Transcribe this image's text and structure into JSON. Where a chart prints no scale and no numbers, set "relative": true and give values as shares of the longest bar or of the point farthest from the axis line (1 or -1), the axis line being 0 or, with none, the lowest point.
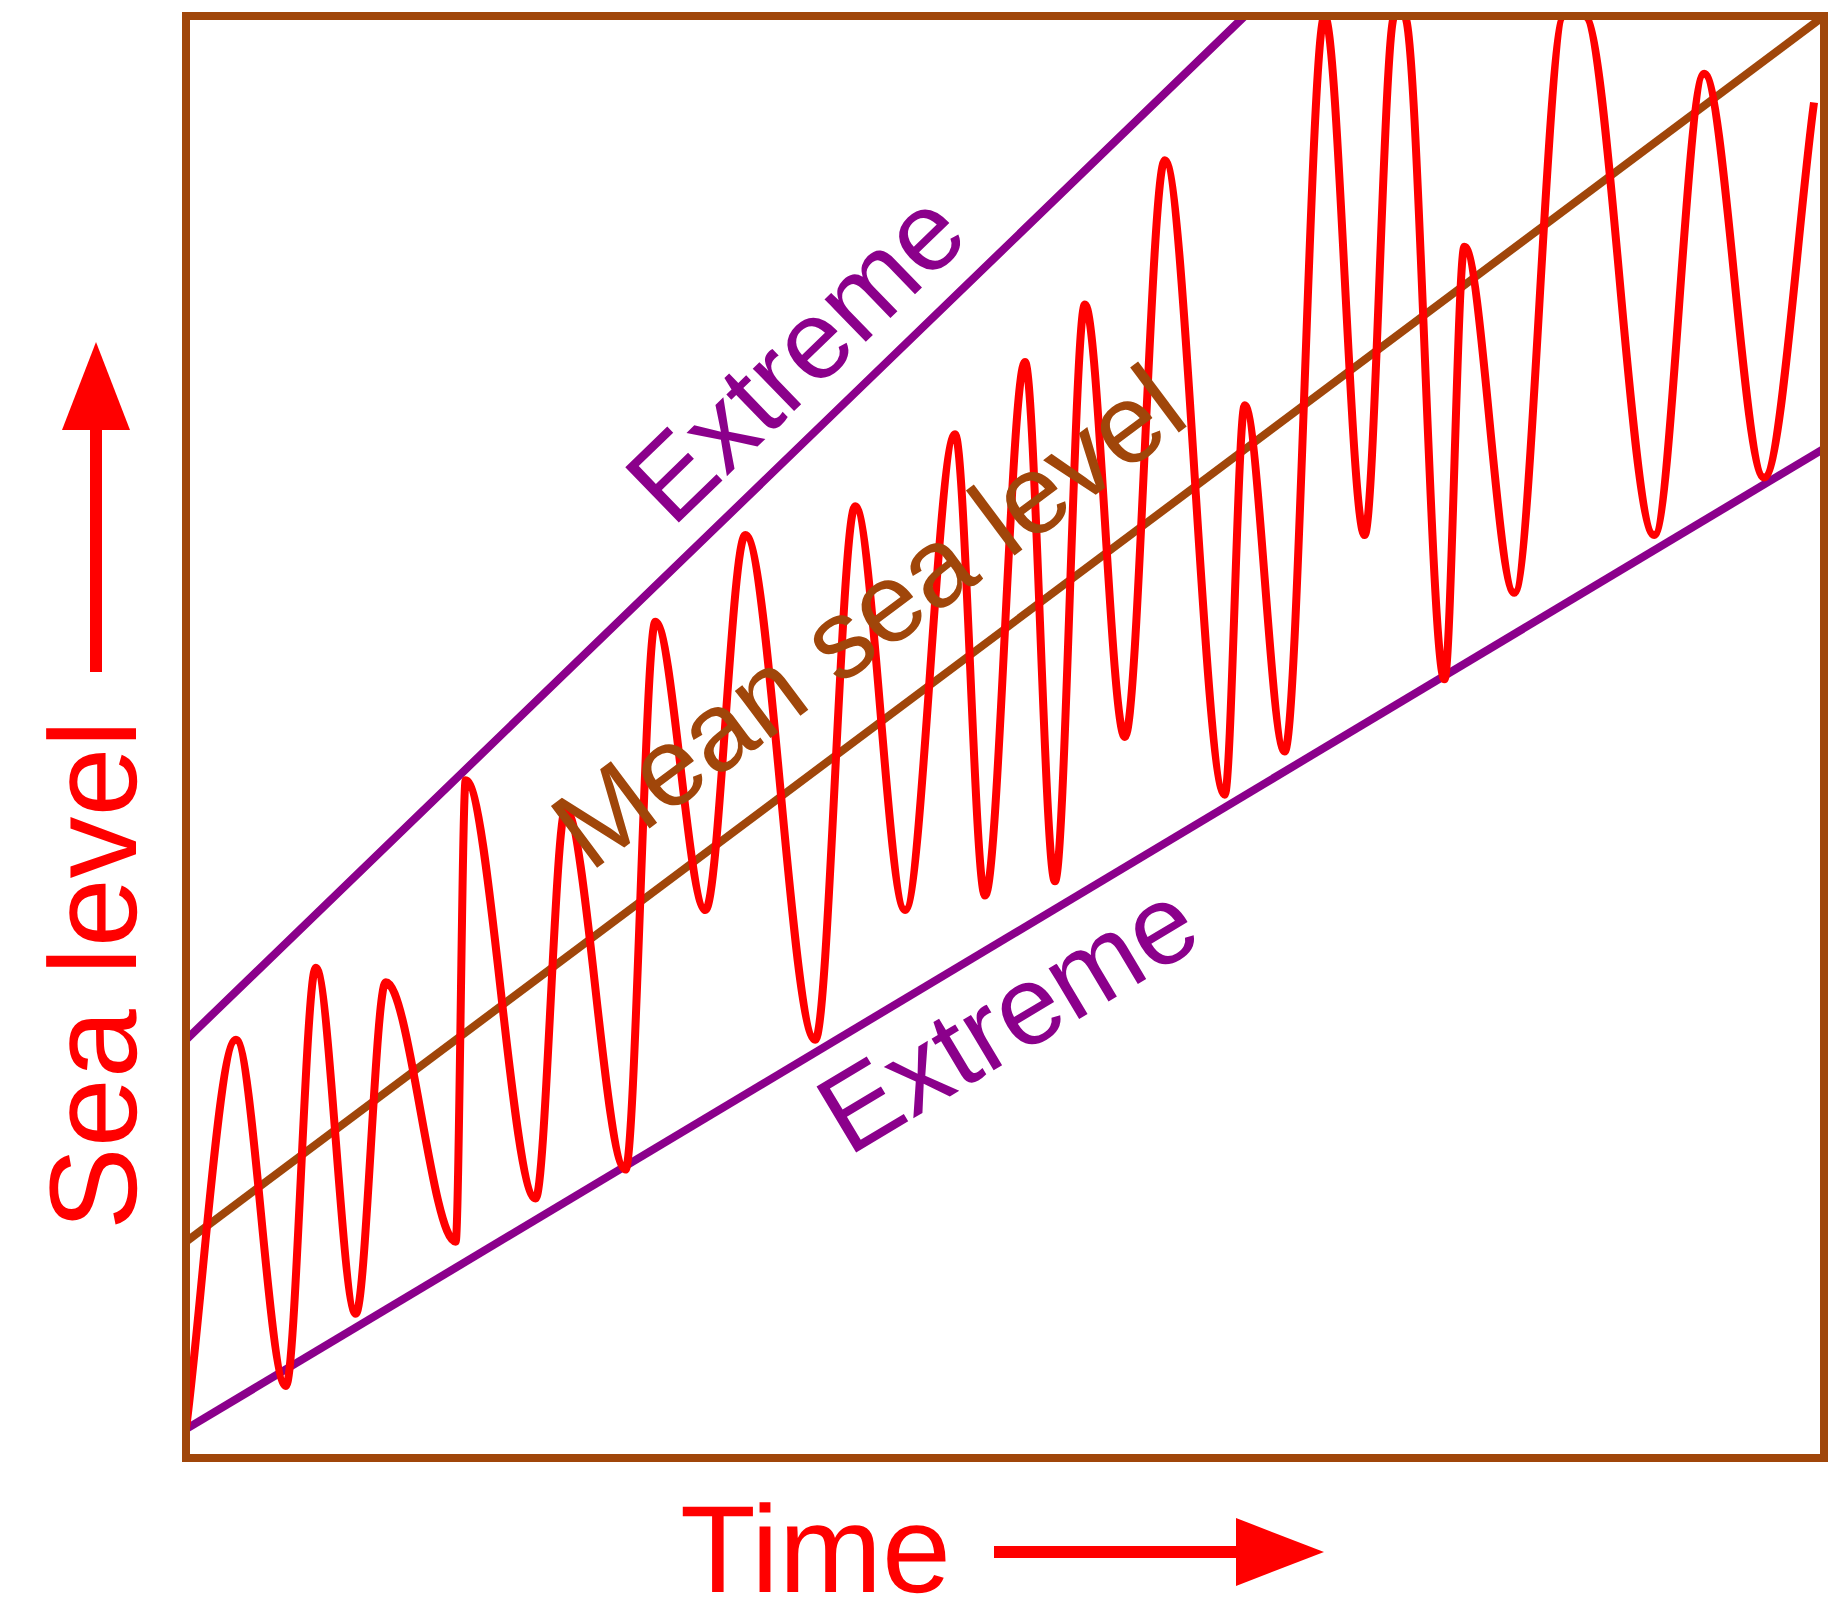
{
  "chart_data": {
    "type": "line",
    "relative": true,
    "xlabel": "Time",
    "ylabel": "Sea level",
    "categories": [
      null,
      null,
      null,
      null,
      null,
      null,
      null,
      null,
      null,
      null,
      null,
      null,
      null,
      null,
      null,
      null,
      null,
      null,
      null,
      null,
      null,
      null,
      null,
      null,
      null,
      null,
      null,
      null,
      null,
      null,
      null,
      null,
      null,
      null,
      null,
      null,
      null,
      null,
      null,
      null,
      null,
      null,
      null,
      null,
      null,
      null,
      null,
      null,
      null,
      null,
      null,
      null,
      null,
      null,
      null,
      null,
      null,
      null,
      null,
      null,
      null,
      null,
      null,
      null,
      null,
      null,
      null,
      null,
      null,
      null,
      null,
      null,
      null,
      null,
      null,
      null,
      null,
      null,
      null,
      null,
      null,
      null,
      null,
      null,
      null,
      null,
      null,
      null,
      null,
      null,
      null,
      null,
      null,
      null,
      null,
      null,
      null,
      null,
      null,
      null,
      null,
      null,
      null,
      null,
      null,
      null,
      null,
      null,
      null,
      null,
      null,
      null,
      null,
      null,
      null,
      null,
      null,
      null,
      null,
      null,
      null,
      null,
      null,
      null,
      null,
      null,
      null,
      null,
      null,
      null,
      null,
      null,
      null,
      null,
      null,
      null,
      null,
      null,
      null,
      null,
      null,
      null,
      null,
      null,
      null,
      null,
      null,
      null,
      null,
      null,
      null,
      null,
      null,
      null,
      null,
      null,
      null,
      null,
      null,
      null,
      null,
      null,
      null,
      null,
      null
    ],
    "series": [
      {
        "color": "#ff0000",
        "values": [
          0.02,
          null,
          null,
          null,
          null,
          0.29,
          null,
          null,
          null,
          null,
          0.05,
          null,
          null,
          0.34,
          null,
          null,
          null,
          0.1,
          null,
          null,
          0.33,
          null,
          null,
          null,
          null,
          null,
          null,
          0.15,
          0.47,
          null,
          null,
          null,
          null,
          null,
          null,
          0.18,
          null,
          null,
          0.45,
          null,
          null,
          null,
          null,
          null,
          0.2,
          null,
          null,
          0.58,
          null,
          null,
          null,
          null,
          0.38,
          null,
          null,
          null,
          0.64,
          null,
          null,
          null,
          null,
          null,
          null,
          0.29,
          null,
          null,
          null,
          0.66,
          null,
          null,
          null,
          null,
          0.38,
          null,
          null,
          null,
          null,
          0.71,
          null,
          null,
          0.39,
          null,
          null,
          null,
          0.76,
          null,
          null,
          0.4,
          null,
          null,
          0.8,
          null,
          null,
          null,
          0.5,
          null,
          null,
          null,
          0.9,
          null,
          null,
          null,
          null,
          null,
          0.46,
          null,
          0.73,
          null,
          null,
          null,
          0.49,
          null,
          null,
          null,
          1,
          null,
          null,
          null,
          0.64,
          null,
          null,
          1,
          1,
          null,
          null,
          null,
          0.54,
          null,
          0.84,
          null,
          null,
          null,
          null,
          0.6,
          null,
          null,
          null,
          null,
          1,
          null,
          1,
          null,
          null,
          null,
          null,
          null,
          null,
          0.64,
          null,
          null,
          null,
          null,
          0.96,
          null,
          null,
          null,
          null,
          null,
          0.68,
          null,
          null,
          null,
          null,
          0.94,
          null
        ]
      },
      {
        "name": "Extreme",
        "color": "#8b008b",
        "values": [
          0.29,
          null,
          null,
          null,
          null,
          null,
          null,
          null,
          null,
          null,
          null,
          null,
          null,
          null,
          null,
          null,
          null,
          null,
          null,
          null,
          null,
          null,
          null,
          null,
          null,
          null,
          null,
          null,
          null,
          null,
          null,
          null,
          null,
          null,
          null,
          null,
          null,
          null,
          null,
          null,
          null,
          null,
          null,
          null,
          null,
          null,
          null,
          null,
          null,
          null,
          null,
          null,
          null,
          null,
          null,
          null,
          null,
          null,
          null,
          null,
          null,
          null,
          null,
          null,
          null,
          null,
          null,
          null,
          null,
          null,
          null,
          null,
          null,
          null,
          null,
          null,
          null,
          null,
          null,
          null,
          null,
          null,
          null,
          null,
          null,
          null,
          null,
          null,
          null,
          null,
          null,
          null,
          null,
          null,
          null,
          null,
          null,
          null,
          null,
          null,
          null,
          null,
          null,
          null,
          null,
          null,
          1,
          null,
          null,
          null,
          null,
          null,
          null,
          null,
          null,
          null,
          null,
          null,
          null,
          null,
          null,
          null,
          null,
          null,
          null,
          null,
          null,
          null,
          null,
          null,
          null,
          null,
          null,
          null,
          null,
          null,
          null,
          null,
          null,
          null,
          null,
          null,
          null,
          null,
          null,
          null,
          null,
          null,
          null,
          null,
          null,
          null,
          null,
          null,
          null,
          null,
          null,
          null,
          null,
          null,
          null,
          null,
          null,
          null,
          null
        ]
      },
      {
        "name": "Mean sea level",
        "color": "#a0460a",
        "values": [
          0.15,
          null,
          null,
          null,
          null,
          null,
          null,
          null,
          null,
          null,
          null,
          null,
          null,
          null,
          null,
          null,
          null,
          null,
          null,
          null,
          null,
          null,
          null,
          null,
          null,
          null,
          null,
          null,
          null,
          null,
          null,
          null,
          null,
          null,
          null,
          null,
          null,
          null,
          null,
          null,
          null,
          null,
          null,
          null,
          null,
          null,
          null,
          null,
          null,
          null,
          null,
          null,
          null,
          null,
          null,
          null,
          null,
          null,
          null,
          null,
          null,
          null,
          null,
          null,
          null,
          null,
          null,
          null,
          null,
          null,
          null,
          null,
          null,
          null,
          null,
          null,
          null,
          null,
          null,
          null,
          null,
          null,
          null,
          null,
          null,
          null,
          null,
          null,
          null,
          null,
          null,
          null,
          null,
          null,
          null,
          null,
          null,
          null,
          null,
          null,
          null,
          null,
          null,
          null,
          null,
          null,
          null,
          null,
          null,
          null,
          null,
          null,
          null,
          null,
          null,
          null,
          null,
          null,
          null,
          null,
          null,
          null,
          null,
          null,
          null,
          null,
          null,
          null,
          null,
          null,
          null,
          null,
          null,
          null,
          null,
          null,
          null,
          null,
          null,
          null,
          null,
          null,
          null,
          null,
          null,
          null,
          null,
          null,
          null,
          null,
          null,
          null,
          null,
          null,
          null,
          null,
          null,
          null,
          null,
          null,
          null,
          null,
          null,
          null,
          1
        ]
      },
      {
        "name": "Extreme",
        "color": "#8b008b",
        "values": [
          0.02,
          null,
          null,
          null,
          null,
          null,
          null,
          null,
          null,
          null,
          null,
          null,
          null,
          null,
          null,
          null,
          null,
          null,
          null,
          null,
          null,
          null,
          null,
          null,
          null,
          null,
          null,
          null,
          null,
          null,
          null,
          null,
          null,
          null,
          null,
          null,
          null,
          null,
          null,
          null,
          null,
          null,
          null,
          null,
          null,
          null,
          null,
          null,
          null,
          null,
          null,
          null,
          null,
          null,
          null,
          null,
          null,
          null,
          null,
          null,
          null,
          null,
          null,
          null,
          null,
          null,
          null,
          null,
          null,
          null,
          null,
          null,
          null,
          null,
          null,
          null,
          null,
          null,
          null,
          null,
          null,
          null,
          null,
          null,
          null,
          null,
          null,
          null,
          null,
          null,
          null,
          null,
          null,
          null,
          null,
          null,
          null,
          null,
          null,
          null,
          null,
          null,
          null,
          null,
          null,
          null,
          null,
          null,
          null,
          null,
          null,
          null,
          null,
          null,
          null,
          null,
          null,
          null,
          null,
          null,
          null,
          null,
          null,
          null,
          null,
          null,
          null,
          null,
          null,
          null,
          null,
          null,
          null,
          null,
          null,
          null,
          null,
          null,
          null,
          null,
          null,
          null,
          null,
          null,
          null,
          null,
          null,
          null,
          null,
          null,
          null,
          null,
          null,
          null,
          null,
          null,
          null,
          null,
          null,
          null,
          null,
          null,
          null,
          null,
          0.7
        ]
      }
    ]
  }
}
